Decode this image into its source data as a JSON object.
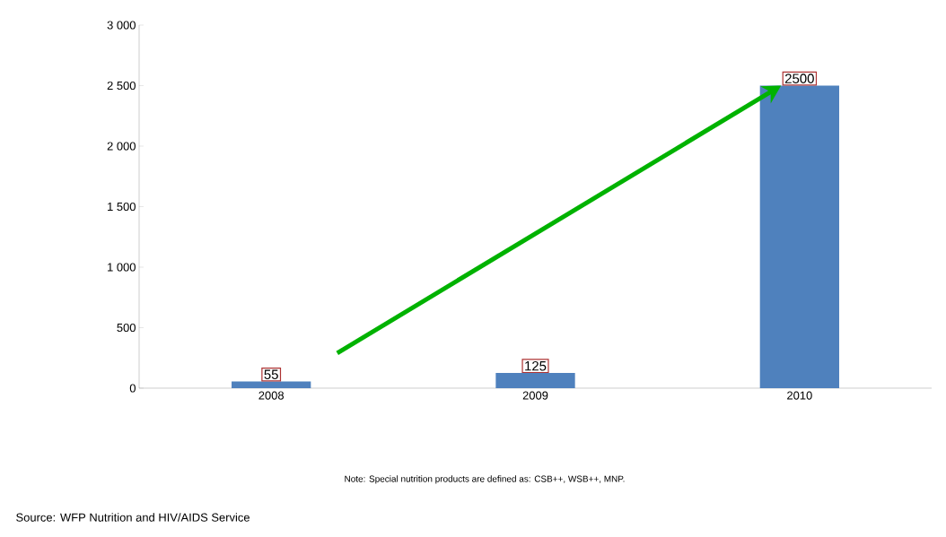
{
  "chart_data": {
    "type": "bar",
    "categories": [
      "2008",
      "2009",
      "2010"
    ],
    "values": [
      55,
      125,
      2500
    ],
    "color": "#4f81bd",
    "ylim": [
      0,
      3000
    ],
    "yticks": [
      0,
      500,
      {
        "value": 1000,
        "label": "1 000"
      },
      {
        "value": 1500,
        "label": "1 500"
      },
      {
        "value": 2000,
        "label": "2 000"
      },
      {
        "value": 2500,
        "label": "2 500"
      },
      {
        "value": 3000,
        "label": "3 000"
      }
    ],
    "data_labels": true,
    "grid": false,
    "annotations": [
      "Note: Special nutrition products are defined as: CSB++, WSB++, MNP.",
      "Source: WFP Nutrition and HIV/AIDS Service"
    ]
  }
}
